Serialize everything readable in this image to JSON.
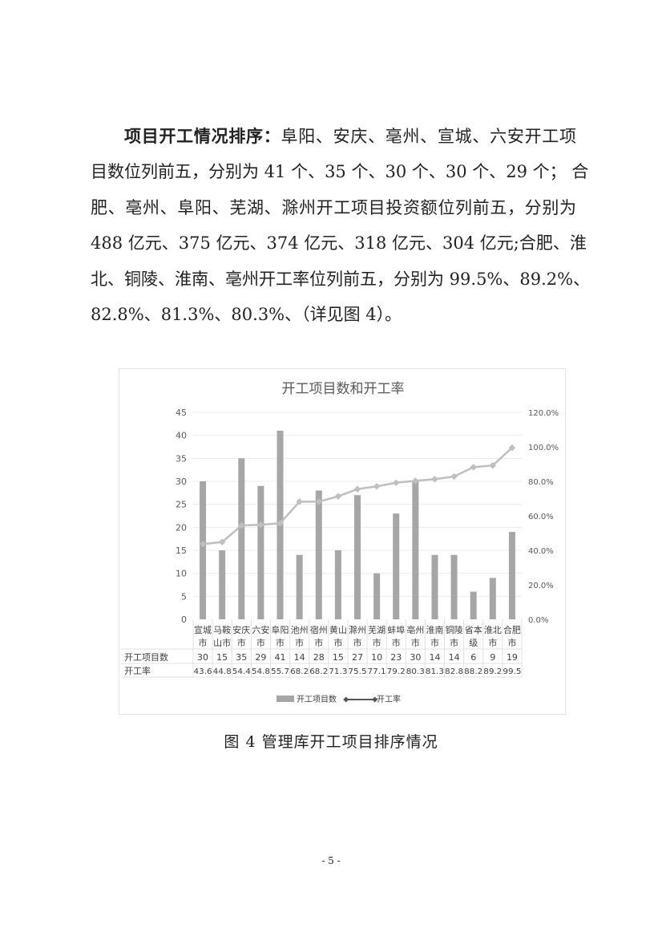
{
  "paragraph": {
    "lead": "项目开工情况排序：",
    "lines": [
      "阜阳、安庆、亳州、宣城、六安开工项",
      "目数位列前五，分别为 41 个、35 个、30 个、30 个、29 个； 合",
      "肥、亳州、阜阳、芜湖、滁州开工项目投资额位列前五，分别为",
      "488 亿元、375 亿元、374 亿元、318 亿元、304 亿元;合肥、淮",
      "北、铜陵、淮南、亳州开工率位列前五，分别为 99.5%、89.2%、",
      "82.8%、81.3%、80.3%、（详见图 4）。"
    ]
  },
  "chart_data": {
    "type": "bar+line",
    "title": "开工项目数和开工率",
    "categories": [
      "宣城市",
      "马鞍山市",
      "安庆市",
      "六安市",
      "阜阳市",
      "池州市",
      "宿州市",
      "黄山市",
      "滁州市",
      "芜湖市",
      "蚌埠市",
      "亳州市",
      "淮南市",
      "铜陵市",
      "省本级",
      "淮北市",
      "合肥市"
    ],
    "series": [
      {
        "name": "开工项目数",
        "type": "bar",
        "axis": "left",
        "color": "#a6a6a6",
        "values": [
          30,
          15,
          35,
          29,
          41,
          14,
          28,
          15,
          27,
          10,
          23,
          30,
          14,
          14,
          6,
          9,
          19
        ]
      },
      {
        "name": "开工率",
        "type": "line",
        "axis": "right",
        "color": "#bfbfbf",
        "marker": "diamond",
        "values": [
          43.6,
          44.8,
          54.4,
          54.8,
          55.7,
          68.2,
          68.2,
          71.3,
          75.5,
          77.1,
          79.2,
          80.3,
          81.3,
          82.8,
          88.2,
          89.2,
          99.5
        ]
      }
    ],
    "left_axis": {
      "min": 0,
      "max": 45,
      "ticks": [
        "0",
        "5",
        "10",
        "15",
        "20",
        "25",
        "30",
        "35",
        "40",
        "45"
      ]
    },
    "right_axis": {
      "min": 0,
      "max": 120,
      "ticks": [
        "0.0%",
        "20.0%",
        "40.0%",
        "60.0%",
        "80.0%",
        "100.0%",
        "120.0%"
      ]
    },
    "grid": true,
    "data_table": true,
    "legend": {
      "placement": "bottom",
      "entries": [
        "开工项目数",
        "开工率"
      ]
    }
  },
  "caption": "图 4  管理库开工项目排序情况",
  "page_number": "- 5 -"
}
